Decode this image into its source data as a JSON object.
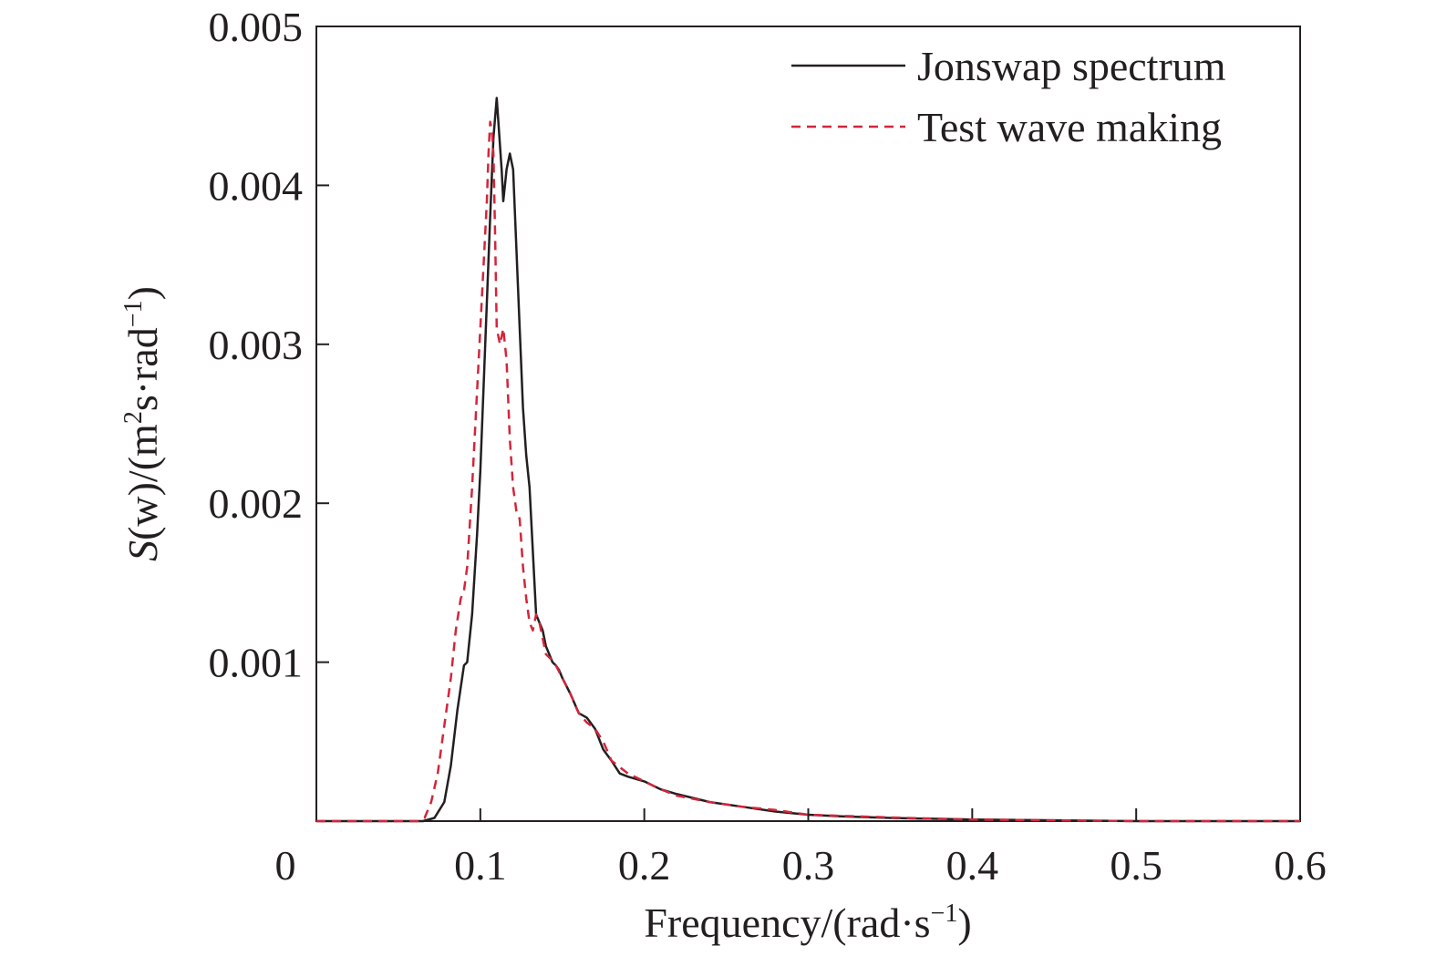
{
  "chart_data": {
    "type": "line",
    "xlabel": {
      "main": "Frequency/(rad·s",
      "sup": "−1",
      "close": ")"
    },
    "ylabel": {
      "italic": "S",
      "main": "(w)/(m",
      "sup1": "2",
      "mid": "s·rad",
      "sup2": "−1",
      "close": ")"
    },
    "xlim": [
      0,
      0.6
    ],
    "ylim": [
      0,
      0.005
    ],
    "x_ticks": [
      {
        "value": 0,
        "label": "0"
      },
      {
        "value": 0.1,
        "label": "0.1"
      },
      {
        "value": 0.2,
        "label": "0.2"
      },
      {
        "value": 0.3,
        "label": "0.3"
      },
      {
        "value": 0.4,
        "label": "0.4"
      },
      {
        "value": 0.5,
        "label": "0.5"
      },
      {
        "value": 0.6,
        "label": "0.6"
      }
    ],
    "y_ticks": [
      {
        "value": 0.001,
        "label": "0.001"
      },
      {
        "value": 0.002,
        "label": "0.002"
      },
      {
        "value": 0.003,
        "label": "0.003"
      },
      {
        "value": 0.004,
        "label": "0.004"
      },
      {
        "value": 0.005,
        "label": "0.005"
      }
    ],
    "grid": false,
    "legend_position": "top-right",
    "series": [
      {
        "name": "Jonswap spectrum",
        "color": "#231f20",
        "dash": "solid",
        "x": [
          0,
          0.065,
          0.072,
          0.078,
          0.082,
          0.086,
          0.09,
          0.092,
          0.095,
          0.098,
          0.1,
          0.103,
          0.106,
          0.108,
          0.11,
          0.111,
          0.113,
          0.114,
          0.116,
          0.118,
          0.12,
          0.122,
          0.124,
          0.126,
          0.128,
          0.13,
          0.132,
          0.134,
          0.136,
          0.138,
          0.14,
          0.142,
          0.144,
          0.146,
          0.148,
          0.15,
          0.155,
          0.16,
          0.165,
          0.17,
          0.175,
          0.18,
          0.185,
          0.19,
          0.2,
          0.21,
          0.22,
          0.24,
          0.26,
          0.28,
          0.3,
          0.32,
          0.35,
          0.4,
          0.5,
          0.6
        ],
        "y": [
          0,
          0,
          2e-05,
          0.00012,
          0.00035,
          0.0007,
          0.00098,
          0.001,
          0.0013,
          0.0018,
          0.0022,
          0.003,
          0.0038,
          0.0043,
          0.00455,
          0.0044,
          0.0041,
          0.0039,
          0.0041,
          0.0042,
          0.0041,
          0.0036,
          0.0031,
          0.0026,
          0.0023,
          0.0021,
          0.0017,
          0.0013,
          0.00125,
          0.0012,
          0.0011,
          0.00105,
          0.001,
          0.00098,
          0.00095,
          0.0009,
          0.0008,
          0.00068,
          0.00065,
          0.00058,
          0.00045,
          0.00038,
          0.0003,
          0.00028,
          0.00025,
          0.0002,
          0.00017,
          0.00012,
          9e-05,
          6e-05,
          4e-05,
          3e-05,
          2e-05,
          1e-05,
          0,
          0
        ]
      },
      {
        "name": "Test wave making",
        "color": "#d2263b",
        "dash": "dashed",
        "x": [
          0,
          0.062,
          0.066,
          0.07,
          0.074,
          0.078,
          0.082,
          0.085,
          0.088,
          0.09,
          0.092,
          0.095,
          0.098,
          0.1,
          0.102,
          0.104,
          0.105,
          0.106,
          0.107,
          0.108,
          0.109,
          0.11,
          0.112,
          0.114,
          0.116,
          0.118,
          0.12,
          0.122,
          0.124,
          0.126,
          0.128,
          0.13,
          0.132,
          0.134,
          0.136,
          0.14,
          0.145,
          0.15,
          0.155,
          0.16,
          0.165,
          0.17,
          0.175,
          0.18,
          0.19,
          0.2,
          0.21,
          0.22,
          0.24,
          0.26,
          0.28,
          0.3,
          0.33,
          0.36,
          0.4,
          0.5,
          0.6
        ],
        "y": [
          0,
          0,
          2e-05,
          0.00012,
          0.0003,
          0.0006,
          0.0009,
          0.0012,
          0.0014,
          0.00145,
          0.0016,
          0.0021,
          0.0027,
          0.0031,
          0.0035,
          0.0039,
          0.0042,
          0.0044,
          0.00435,
          0.0042,
          0.0037,
          0.0031,
          0.003,
          0.0031,
          0.0029,
          0.0024,
          0.0021,
          0.00195,
          0.0019,
          0.0016,
          0.0014,
          0.00125,
          0.0012,
          0.0013,
          0.00125,
          0.00105,
          0.001,
          0.0009,
          0.0008,
          0.00068,
          0.00062,
          0.00058,
          0.0005,
          0.00038,
          0.0003,
          0.00025,
          0.0002,
          0.00016,
          0.00012,
          9e-05,
          7e-05,
          4e-05,
          3e-05,
          2e-05,
          1e-05,
          0,
          0
        ]
      }
    ]
  }
}
